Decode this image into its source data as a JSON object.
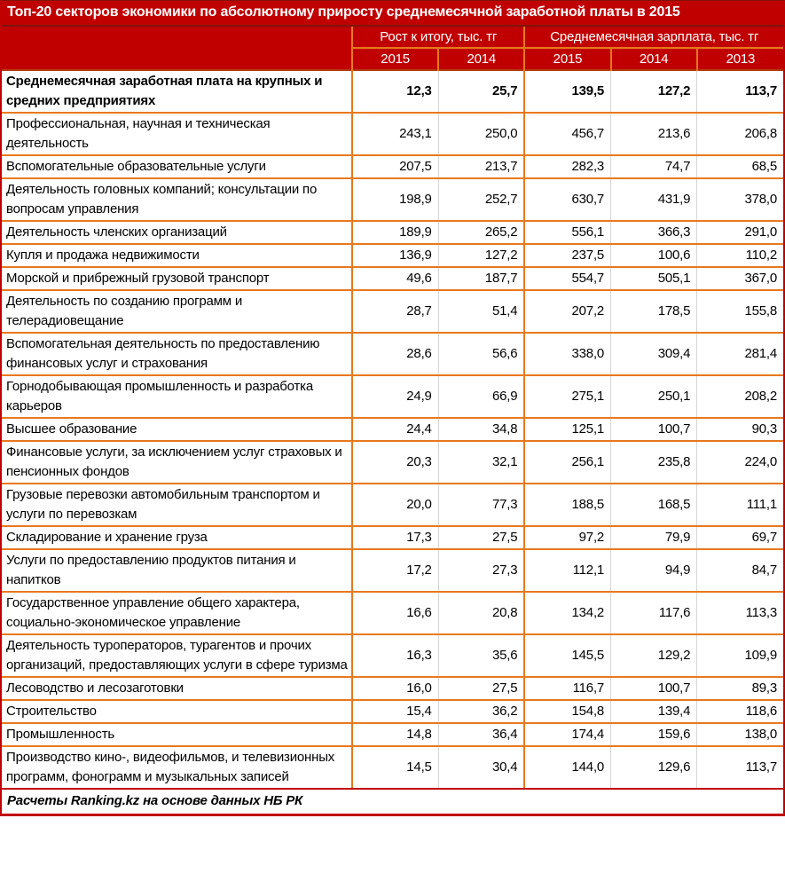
{
  "title": "Топ-20 секторов экономики по абсолютному приросту среднемесячной заработной платы в 2015",
  "header": {
    "growth_group_label": "Рост к итогу, тыс. тг",
    "salary_group_label": "Среднемесячная зарплата, тыс. тг",
    "growth_years": [
      "2015",
      "2014"
    ],
    "salary_years": [
      "2015",
      "2014",
      "2013"
    ]
  },
  "footer": "Расчеты Ranking.kz на основе данных НБ РК",
  "colors": {
    "header_red": "#C00000",
    "separator_dark_red": "#7E150B",
    "border_orange": "#E8781E",
    "border_gray": "#D6D6D6"
  },
  "chart_data": {
    "type": "table",
    "title": "Топ-20 секторов экономики по абсолютному приросту среднемесячной заработной платы в 2015",
    "column_groups": [
      "Рост к итогу, тыс. тг",
      "Среднемесячная зарплата, тыс. тг"
    ],
    "columns": [
      "Рост к итогу 2015",
      "Рост к итогу 2014",
      "Зарплата 2015",
      "Зарплата 2014",
      "Зарплата 2013"
    ],
    "units": "тыс. тг",
    "rows": [
      {
        "sector": "Среднемесячная заработная плата на крупных и средних предприятиях",
        "bold": true,
        "values": [
          12.3,
          25.7,
          139.5,
          127.2,
          113.7
        ]
      },
      {
        "sector": "Профессиональная, научная и техническая деятельность",
        "bold": false,
        "values": [
          243.1,
          250.0,
          456.7,
          213.6,
          206.8
        ]
      },
      {
        "sector": "Вспомогательные образовательные услуги",
        "bold": false,
        "values": [
          207.5,
          213.7,
          282.3,
          74.7,
          68.5
        ]
      },
      {
        "sector": "Деятельность головных компаний; консультации по вопросам управления",
        "bold": false,
        "values": [
          198.9,
          252.7,
          630.7,
          431.9,
          378.0
        ]
      },
      {
        "sector": "Деятельность членских организаций",
        "bold": false,
        "values": [
          189.9,
          265.2,
          556.1,
          366.3,
          291.0
        ]
      },
      {
        "sector": "Купля и продажа недвижимости",
        "bold": false,
        "values": [
          136.9,
          127.2,
          237.5,
          100.6,
          110.2
        ]
      },
      {
        "sector": "Морской и прибрежный грузовой транспорт",
        "bold": false,
        "values": [
          49.6,
          187.7,
          554.7,
          505.1,
          367.0
        ]
      },
      {
        "sector": "Деятельность по созданию программ и телерадиовещание",
        "bold": false,
        "values": [
          28.7,
          51.4,
          207.2,
          178.5,
          155.8
        ]
      },
      {
        "sector": "Вспомогательная деятельность по предоставлению финансовых услуг и страхования",
        "bold": false,
        "values": [
          28.6,
          56.6,
          338.0,
          309.4,
          281.4
        ]
      },
      {
        "sector": "Горнодобывающая промышленность и разработка карьеров",
        "bold": false,
        "values": [
          24.9,
          66.9,
          275.1,
          250.1,
          208.2
        ]
      },
      {
        "sector": "Высшее образование",
        "bold": false,
        "values": [
          24.4,
          34.8,
          125.1,
          100.7,
          90.3
        ]
      },
      {
        "sector": "Финансовые услуги, за исключением услуг страховых и пенсионных фондов",
        "bold": false,
        "values": [
          20.3,
          32.1,
          256.1,
          235.8,
          224.0
        ]
      },
      {
        "sector": "Грузовые перевозки автомобильным транспортом и услуги по перевозкам",
        "bold": false,
        "values": [
          20.0,
          77.3,
          188.5,
          168.5,
          111.1
        ]
      },
      {
        "sector": "Складирование и хранение груза",
        "bold": false,
        "values": [
          17.3,
          27.5,
          97.2,
          79.9,
          69.7
        ]
      },
      {
        "sector": "Услуги по предоставлению продуктов питания и напитков",
        "bold": false,
        "values": [
          17.2,
          27.3,
          112.1,
          94.9,
          84.7
        ]
      },
      {
        "sector": "Государственное управление общего характера, социально-экономическое управление",
        "bold": false,
        "values": [
          16.6,
          20.8,
          134.2,
          117.6,
          113.3
        ]
      },
      {
        "sector": "Деятельность туроператоров, турагентов и прочих организаций, предоставляющих услуги в сфере туризма",
        "bold": false,
        "values": [
          16.3,
          35.6,
          145.5,
          129.2,
          109.9
        ]
      },
      {
        "sector": "Лесоводство и лесозаготовки",
        "bold": false,
        "values": [
          16.0,
          27.5,
          116.7,
          100.7,
          89.3
        ]
      },
      {
        "sector": "Строительство",
        "bold": false,
        "values": [
          15.4,
          36.2,
          154.8,
          139.4,
          118.6
        ]
      },
      {
        "sector": "Промышленность",
        "bold": false,
        "values": [
          14.8,
          36.4,
          174.4,
          159.6,
          138.0
        ]
      },
      {
        "sector": "Производство кино-, видеофильмов, и телевизионных программ, фонограмм и музыкальных записей",
        "bold": false,
        "values": [
          14.5,
          30.4,
          144.0,
          129.6,
          113.7
        ]
      }
    ]
  }
}
